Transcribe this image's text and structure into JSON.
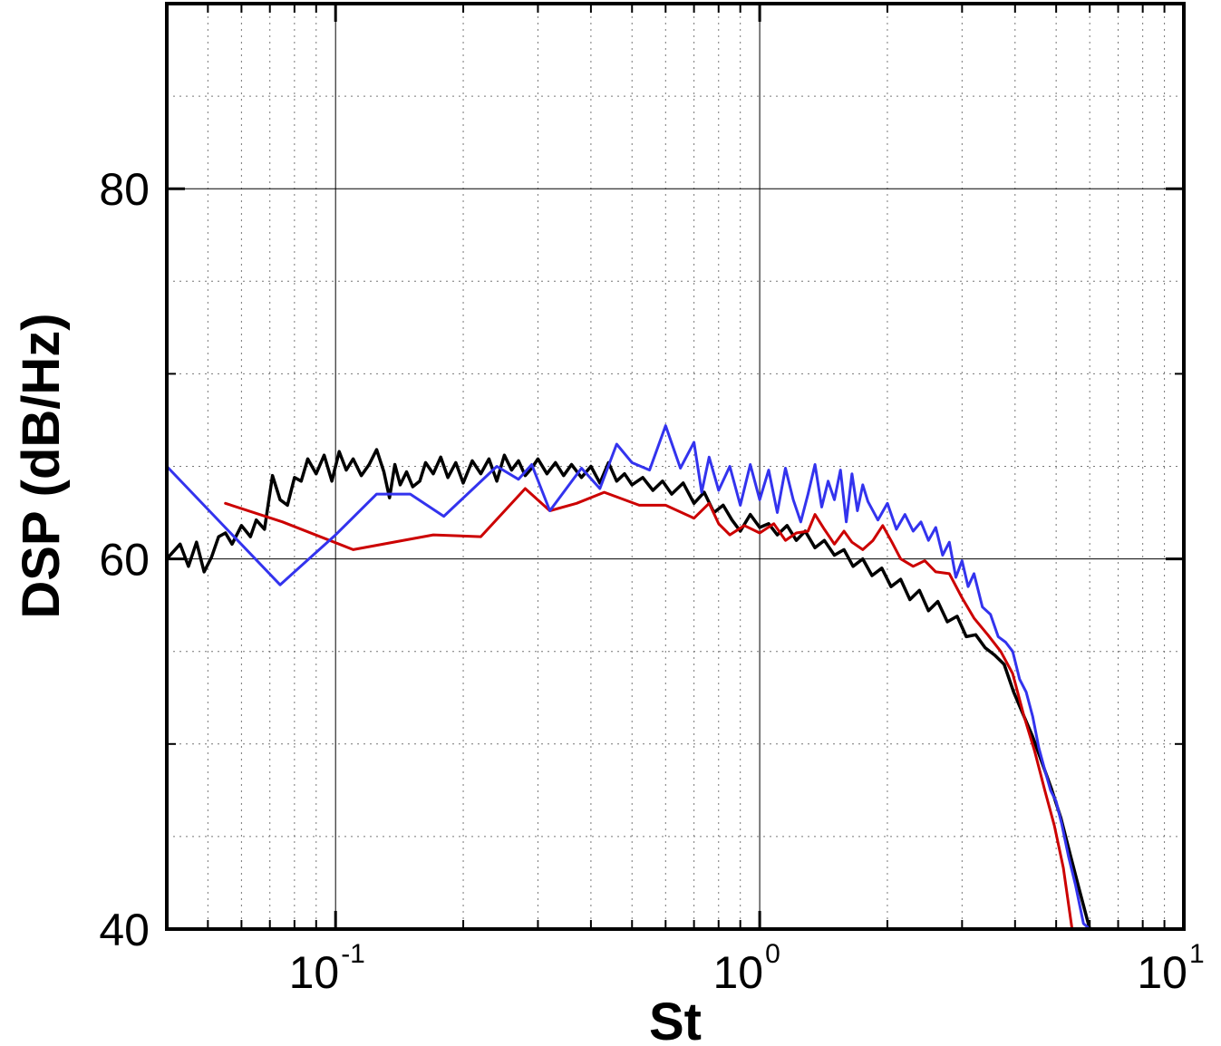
{
  "chart_data": {
    "type": "line",
    "title": "",
    "xlabel": "St",
    "ylabel": "DSP (dB/Hz)",
    "xscale": "log",
    "xlim": [
      0.04,
      10
    ],
    "ylim": [
      40,
      90
    ],
    "x_ticks": [
      {
        "value": 0.1,
        "base": "10",
        "exp": "-1"
      },
      {
        "value": 1,
        "base": "10",
        "exp": "0"
      },
      {
        "value": 10,
        "base": "10",
        "exp": "1"
      }
    ],
    "y_ticks": [
      {
        "value": 40,
        "label": "40"
      },
      {
        "value": 60,
        "label": "60"
      },
      {
        "value": 80,
        "label": "80"
      }
    ],
    "grid": true,
    "legend": "none",
    "series": [
      {
        "color": "#000000",
        "stroke_width": 3.5,
        "points": [
          [
            0.04,
            60.0
          ],
          [
            0.043,
            60.8
          ],
          [
            0.045,
            59.6
          ],
          [
            0.047,
            60.9
          ],
          [
            0.049,
            59.3
          ],
          [
            0.051,
            60.1
          ],
          [
            0.053,
            61.2
          ],
          [
            0.055,
            61.4
          ],
          [
            0.057,
            60.8
          ],
          [
            0.06,
            61.8
          ],
          [
            0.063,
            61.2
          ],
          [
            0.065,
            62.1
          ],
          [
            0.068,
            61.6
          ],
          [
            0.071,
            64.5
          ],
          [
            0.074,
            63.2
          ],
          [
            0.077,
            62.9
          ],
          [
            0.08,
            64.4
          ],
          [
            0.083,
            64.2
          ],
          [
            0.086,
            65.4
          ],
          [
            0.09,
            64.6
          ],
          [
            0.094,
            65.6
          ],
          [
            0.098,
            64.2
          ],
          [
            0.102,
            65.8
          ],
          [
            0.106,
            64.8
          ],
          [
            0.11,
            65.4
          ],
          [
            0.115,
            64.5
          ],
          [
            0.12,
            65.1
          ],
          [
            0.125,
            65.9
          ],
          [
            0.13,
            64.7
          ],
          [
            0.134,
            63.3
          ],
          [
            0.138,
            65.1
          ],
          [
            0.142,
            64.0
          ],
          [
            0.147,
            64.7
          ],
          [
            0.152,
            63.9
          ],
          [
            0.158,
            64.2
          ],
          [
            0.163,
            65.2
          ],
          [
            0.17,
            64.6
          ],
          [
            0.177,
            65.5
          ],
          [
            0.184,
            64.4
          ],
          [
            0.192,
            65.2
          ],
          [
            0.2,
            64.1
          ],
          [
            0.21,
            65.3
          ],
          [
            0.22,
            64.6
          ],
          [
            0.23,
            65.4
          ],
          [
            0.24,
            64.2
          ],
          [
            0.25,
            65.6
          ],
          [
            0.26,
            64.8
          ],
          [
            0.27,
            65.3
          ],
          [
            0.28,
            64.5
          ],
          [
            0.29,
            64.9
          ],
          [
            0.3,
            65.4
          ],
          [
            0.315,
            64.6
          ],
          [
            0.33,
            65.2
          ],
          [
            0.345,
            64.5
          ],
          [
            0.36,
            65.1
          ],
          [
            0.38,
            64.4
          ],
          [
            0.4,
            65.0
          ],
          [
            0.42,
            64.1
          ],
          [
            0.44,
            65.2
          ],
          [
            0.46,
            64.2
          ],
          [
            0.48,
            64.6
          ],
          [
            0.5,
            64.0
          ],
          [
            0.53,
            64.4
          ],
          [
            0.56,
            63.7
          ],
          [
            0.59,
            64.2
          ],
          [
            0.62,
            63.5
          ],
          [
            0.66,
            64.1
          ],
          [
            0.7,
            63.0
          ],
          [
            0.74,
            63.6
          ],
          [
            0.78,
            62.5
          ],
          [
            0.82,
            62.9
          ],
          [
            0.86,
            62.1
          ],
          [
            0.9,
            61.5
          ],
          [
            0.95,
            62.4
          ],
          [
            1.0,
            61.7
          ],
          [
            1.05,
            61.9
          ],
          [
            1.1,
            61.3
          ],
          [
            1.16,
            61.8
          ],
          [
            1.22,
            61.0
          ],
          [
            1.28,
            61.5
          ],
          [
            1.35,
            60.6
          ],
          [
            1.42,
            61.0
          ],
          [
            1.5,
            60.2
          ],
          [
            1.58,
            60.5
          ],
          [
            1.66,
            59.6
          ],
          [
            1.75,
            60.0
          ],
          [
            1.84,
            59.1
          ],
          [
            1.94,
            59.5
          ],
          [
            2.04,
            58.5
          ],
          [
            2.15,
            58.9
          ],
          [
            2.26,
            57.8
          ],
          [
            2.38,
            58.3
          ],
          [
            2.5,
            57.2
          ],
          [
            2.63,
            57.7
          ],
          [
            2.77,
            56.6
          ],
          [
            2.92,
            56.9
          ],
          [
            3.07,
            55.8
          ],
          [
            3.23,
            55.9
          ],
          [
            3.4,
            55.2
          ],
          [
            3.58,
            54.8
          ],
          [
            3.77,
            54.3
          ],
          [
            3.97,
            52.8
          ],
          [
            4.18,
            51.6
          ],
          [
            4.4,
            50.4
          ],
          [
            4.63,
            49.0
          ],
          [
            4.87,
            47.6
          ],
          [
            5.13,
            46.0
          ],
          [
            5.4,
            44.0
          ],
          [
            5.69,
            42.0
          ],
          [
            6.0,
            40.0
          ]
        ]
      },
      {
        "color": "#cc0000",
        "stroke_width": 3,
        "points": [
          [
            0.055,
            63.0
          ],
          [
            0.075,
            62.0
          ],
          [
            0.11,
            60.5
          ],
          [
            0.17,
            61.3
          ],
          [
            0.22,
            61.2
          ],
          [
            0.28,
            63.8
          ],
          [
            0.32,
            62.6
          ],
          [
            0.37,
            63.0
          ],
          [
            0.43,
            63.6
          ],
          [
            0.52,
            62.9
          ],
          [
            0.6,
            62.9
          ],
          [
            0.7,
            62.2
          ],
          [
            0.76,
            63.0
          ],
          [
            0.8,
            61.9
          ],
          [
            0.85,
            61.3
          ],
          [
            0.92,
            61.8
          ],
          [
            1.0,
            61.4
          ],
          [
            1.08,
            61.9
          ],
          [
            1.15,
            61.0
          ],
          [
            1.22,
            61.4
          ],
          [
            1.3,
            61.5
          ],
          [
            1.35,
            62.4
          ],
          [
            1.42,
            61.6
          ],
          [
            1.5,
            60.8
          ],
          [
            1.58,
            61.5
          ],
          [
            1.65,
            60.9
          ],
          [
            1.75,
            60.5
          ],
          [
            1.85,
            61.0
          ],
          [
            1.95,
            61.8
          ],
          [
            2.05,
            60.9
          ],
          [
            2.15,
            60.0
          ],
          [
            2.3,
            59.6
          ],
          [
            2.45,
            59.9
          ],
          [
            2.6,
            59.3
          ],
          [
            2.8,
            59.2
          ],
          [
            3.0,
            57.9
          ],
          [
            3.2,
            56.8
          ],
          [
            3.45,
            55.9
          ],
          [
            3.7,
            55.0
          ],
          [
            3.95,
            53.8
          ],
          [
            4.2,
            51.5
          ],
          [
            4.45,
            49.6
          ],
          [
            4.7,
            47.5
          ],
          [
            4.95,
            45.6
          ],
          [
            5.2,
            43.3
          ],
          [
            5.45,
            40.0
          ]
        ]
      },
      {
        "color": "#3333ee",
        "stroke_width": 3,
        "points": [
          [
            0.04,
            65.0
          ],
          [
            0.074,
            58.6
          ],
          [
            0.1,
            61.3
          ],
          [
            0.125,
            63.5
          ],
          [
            0.15,
            63.5
          ],
          [
            0.18,
            62.3
          ],
          [
            0.24,
            65.0
          ],
          [
            0.27,
            64.3
          ],
          [
            0.29,
            65.1
          ],
          [
            0.32,
            62.6
          ],
          [
            0.38,
            64.9
          ],
          [
            0.42,
            63.8
          ],
          [
            0.46,
            66.2
          ],
          [
            0.5,
            65.2
          ],
          [
            0.55,
            64.8
          ],
          [
            0.6,
            67.2
          ],
          [
            0.65,
            64.9
          ],
          [
            0.7,
            66.3
          ],
          [
            0.73,
            63.6
          ],
          [
            0.76,
            65.5
          ],
          [
            0.8,
            63.7
          ],
          [
            0.85,
            65.0
          ],
          [
            0.9,
            62.9
          ],
          [
            0.95,
            65.1
          ],
          [
            1.0,
            63.2
          ],
          [
            1.05,
            64.8
          ],
          [
            1.1,
            62.5
          ],
          [
            1.15,
            64.9
          ],
          [
            1.2,
            63.2
          ],
          [
            1.25,
            62.0
          ],
          [
            1.3,
            63.5
          ],
          [
            1.35,
            65.1
          ],
          [
            1.4,
            62.8
          ],
          [
            1.45,
            64.2
          ],
          [
            1.5,
            63.2
          ],
          [
            1.55,
            64.8
          ],
          [
            1.6,
            62.0
          ],
          [
            1.65,
            64.6
          ],
          [
            1.7,
            62.6
          ],
          [
            1.75,
            64.0
          ],
          [
            1.8,
            63.1
          ],
          [
            1.9,
            62.1
          ],
          [
            2.0,
            63.0
          ],
          [
            2.1,
            61.6
          ],
          [
            2.2,
            62.4
          ],
          [
            2.3,
            61.5
          ],
          [
            2.4,
            62.0
          ],
          [
            2.5,
            61.0
          ],
          [
            2.6,
            61.7
          ],
          [
            2.7,
            60.2
          ],
          [
            2.8,
            60.9
          ],
          [
            2.9,
            59.0
          ],
          [
            3.0,
            59.9
          ],
          [
            3.1,
            58.5
          ],
          [
            3.2,
            59.2
          ],
          [
            3.35,
            57.4
          ],
          [
            3.5,
            57.0
          ],
          [
            3.65,
            55.8
          ],
          [
            3.8,
            55.5
          ],
          [
            3.95,
            55.0
          ],
          [
            4.1,
            53.5
          ],
          [
            4.25,
            52.8
          ],
          [
            4.4,
            51.5
          ],
          [
            4.55,
            49.8
          ],
          [
            4.7,
            48.6
          ],
          [
            4.85,
            47.5
          ],
          [
            5.0,
            46.9
          ],
          [
            5.15,
            45.7
          ],
          [
            5.35,
            43.9
          ],
          [
            5.55,
            42.4
          ],
          [
            5.8,
            40.3
          ],
          [
            6.0,
            40.0
          ]
        ]
      }
    ]
  }
}
